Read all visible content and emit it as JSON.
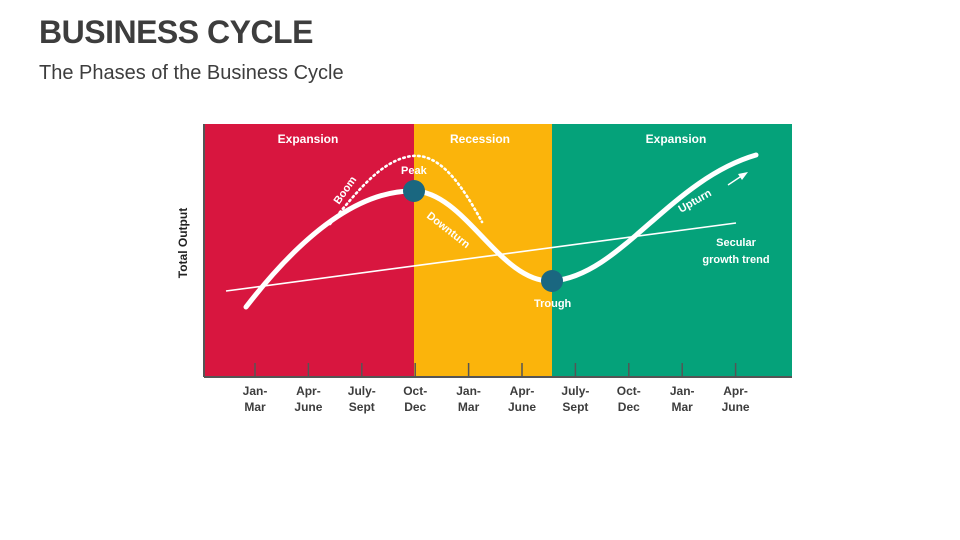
{
  "title": "BUSINESS CYCLE",
  "subtitle": "The Phases of the Business Cycle",
  "colors": {
    "expansion_red": "#d8163f",
    "recession_amber": "#fbb40b",
    "expansion_green": "#05a27a",
    "marker": "#1a6780",
    "curve": "#ffffff",
    "axis": "#555555"
  },
  "y_axis_label": "Total Output",
  "zones": [
    {
      "label": "Expansion"
    },
    {
      "label": "Recession"
    },
    {
      "label": "Expansion"
    }
  ],
  "labels": {
    "boom": "Boom",
    "peak": "Peak",
    "downturn": "Downturn",
    "trough": "Trough",
    "upturn": "Upturn",
    "secular_line1": "Secular",
    "secular_line2": "growth trend"
  },
  "ticks": [
    {
      "line1": "Jan-",
      "line2": "Mar"
    },
    {
      "line1": "Apr-",
      "line2": "June"
    },
    {
      "line1": "July-",
      "line2": "Sept"
    },
    {
      "line1": "Oct-",
      "line2": "Dec"
    },
    {
      "line1": "Jan-",
      "line2": "Mar"
    },
    {
      "line1": "Apr-",
      "line2": "June"
    },
    {
      "line1": "July-",
      "line2": "Sept"
    },
    {
      "line1": "Oct-",
      "line2": "Dec"
    },
    {
      "line1": "Jan-",
      "line2": "Mar"
    },
    {
      "line1": "Apr-",
      "line2": "June"
    }
  ]
}
